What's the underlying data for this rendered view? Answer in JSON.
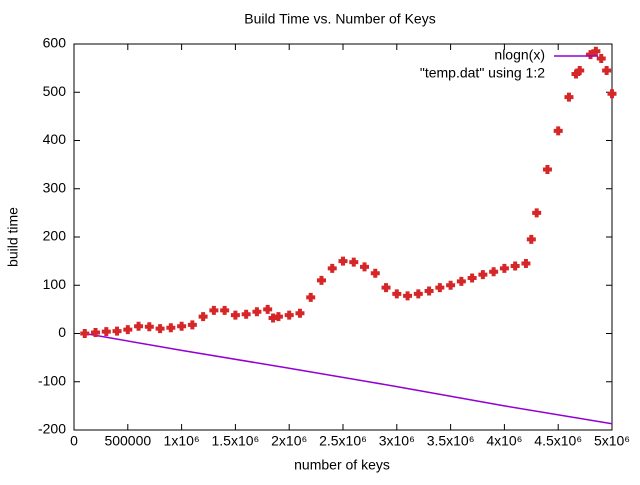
{
  "chart_data": {
    "type": "line",
    "title": "Build Time vs. Number of Keys",
    "xlabel": "number of keys",
    "ylabel": "build time",
    "xlim": [
      0,
      5000000
    ],
    "ylim": [
      -200,
      600
    ],
    "xticks": [
      0,
      500000,
      {
        "value": 1000000,
        "label": "1x10⁶"
      },
      {
        "value": 1500000,
        "label": "1.5x10⁶"
      },
      {
        "value": 2000000,
        "label": "2x10⁶"
      },
      {
        "value": 2500000,
        "label": "2.5x10⁶"
      },
      {
        "value": 3000000,
        "label": "3x10⁶"
      },
      {
        "value": 3500000,
        "label": "3.5x10⁶"
      },
      {
        "value": 4000000,
        "label": "4x10⁶"
      },
      {
        "value": 4500000,
        "label": "4.5x10⁶"
      },
      {
        "value": 5000000,
        "label": "5x10⁶"
      }
    ],
    "yticks": [
      -200,
      -100,
      0,
      100,
      200,
      300,
      400,
      500,
      600
    ],
    "legend": "top-right",
    "series": [
      {
        "name": "nlogn(x)",
        "color": "#9400d3",
        "style": "lines",
        "x": [
          100000,
          1000000,
          2000000,
          3000000,
          4000000,
          5000000
        ],
        "values": [
          0,
          -35,
          -72,
          -110,
          -150,
          -187
        ]
      },
      {
        "name": "\"temp.dat\" using 1:2",
        "color": "#d62728",
        "style": "points",
        "x": [
          100000,
          200000,
          300000,
          400000,
          500000,
          600000,
          700000,
          800000,
          900000,
          1000000,
          1100000,
          1200000,
          1300000,
          1400000,
          1500000,
          1600000,
          1700000,
          1800000,
          1850000,
          1900000,
          2000000,
          2100000,
          2200000,
          2300000,
          2400000,
          2500000,
          2600000,
          2700000,
          2800000,
          2900000,
          3000000,
          3100000,
          3200000,
          3300000,
          3400000,
          3500000,
          3600000,
          3700000,
          3800000,
          3900000,
          4000000,
          4100000,
          4200000,
          4250000,
          4300000,
          4400000,
          4500000,
          4600000,
          4700000,
          4800000,
          4850000,
          4900000,
          4950000,
          5000000
        ],
        "values": [
          0,
          2,
          4,
          5,
          8,
          15,
          14,
          10,
          12,
          15,
          18,
          35,
          48,
          48,
          38,
          40,
          45,
          50,
          32,
          35,
          38,
          42,
          75,
          110,
          135,
          150,
          148,
          138,
          125,
          95,
          82,
          78,
          82,
          88,
          95,
          100,
          108,
          115,
          122,
          128,
          135,
          140,
          145,
          195,
          250,
          340,
          420,
          490,
          545,
          578,
          585,
          570,
          545,
          497
        ]
      }
    ]
  }
}
